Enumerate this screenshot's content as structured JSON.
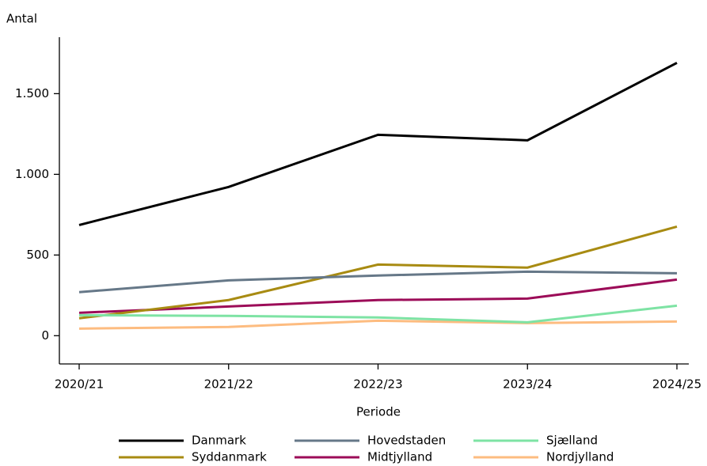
{
  "chart_data": {
    "type": "line",
    "y_label": "Antal",
    "x_label": "Periode",
    "categories": [
      "2020/21",
      "2021/22",
      "2022/23",
      "2023/24",
      "2024/25"
    ],
    "ylim": [
      -175,
      1850
    ],
    "yticks": [
      0,
      500,
      {
        "value": 1000,
        "label": "1.000"
      },
      {
        "value": 1500,
        "label": "1.500"
      }
    ],
    "series": [
      {
        "name": "Danmark",
        "color": "#000000",
        "values": [
          686,
          922,
          1245,
          1211,
          1691
        ]
      },
      {
        "name": "Hovedstaden",
        "color": "#667888",
        "values": [
          270,
          343,
          373,
          397,
          387
        ]
      },
      {
        "name": "Sjælland",
        "color": "#7ee3a4",
        "values": [
          127,
          123,
          113,
          83,
          186
        ]
      },
      {
        "name": "Syddanmark",
        "color": "#a88b12",
        "values": [
          108,
          221,
          441,
          422,
          676
        ]
      },
      {
        "name": "Midtjylland",
        "color": "#9c0c58",
        "values": [
          142,
          181,
          221,
          230,
          348
        ]
      },
      {
        "name": "Nordjylland",
        "color": "#fdbc80",
        "values": [
          44,
          54,
          93,
          78,
          88
        ]
      }
    ]
  }
}
